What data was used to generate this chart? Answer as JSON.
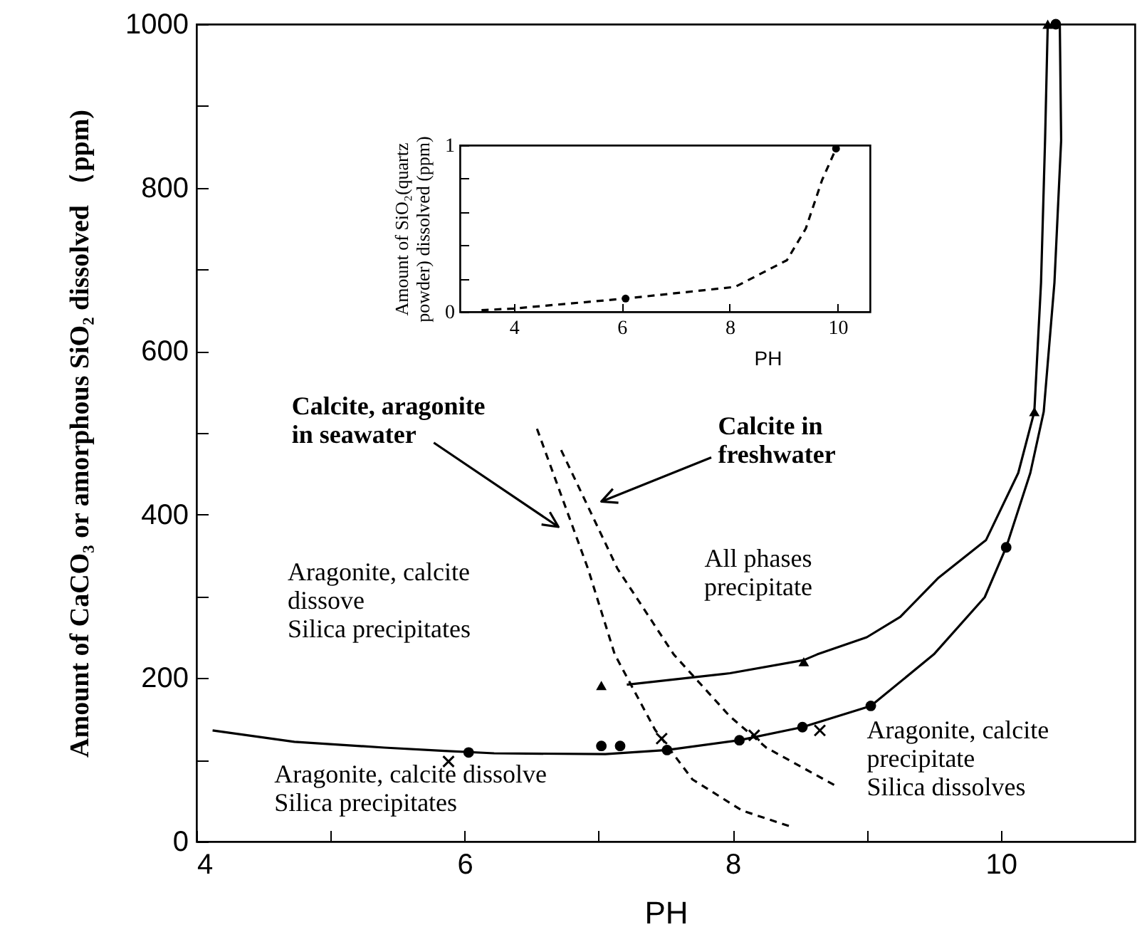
{
  "chart_data": [
    {
      "type": "line",
      "xlabel": "PH",
      "ylabel": "Amount of CaCO₃ or amorphous SiO₂ dissolved （ppm)",
      "xlim": [
        4,
        11
      ],
      "ylim": [
        0,
        1000
      ],
      "xticks": [
        4,
        {
          "value": 5,
          "label": null
        },
        6,
        {
          "value": 7,
          "label": null
        },
        8,
        {
          "value": 9,
          "label": null
        },
        10
      ],
      "yticks": [
        0,
        {
          "value": 100,
          "label": null
        },
        200,
        {
          "value": 300,
          "label": null
        },
        400,
        {
          "value": 500,
          "label": null
        },
        600,
        {
          "value": 700,
          "label": null
        },
        800,
        {
          "value": 900,
          "label": null
        },
        1000
      ],
      "series": [
        {
          "type": "line",
          "color": "#000000",
          "marker": "none",
          "line_style": "solid",
          "x": [
            4.12,
            4.73,
            5.4,
            5.85,
            6.22,
            7.05,
            7.51,
            8.05,
            8.52,
            9.03,
            9.5,
            9.88,
            10.04,
            10.22,
            10.32,
            10.4,
            10.45,
            10.44
          ],
          "values": [
            136,
            122,
            115,
            111,
            108,
            107,
            112,
            124,
            140,
            166,
            229,
            299,
            360,
            451,
            526,
            684,
            858,
            1000
          ]
        },
        {
          "type": "line",
          "color": "#000000",
          "marker": "none",
          "line_style": "solid",
          "x": [
            7.21,
            7.98,
            8.53,
            8.63,
            9.0,
            9.25,
            9.53,
            9.89,
            10.13,
            10.25,
            10.3,
            10.33,
            10.35
          ],
          "values": [
            192,
            206,
            222,
            229,
            250,
            275,
            322,
            369,
            451,
            526,
            684,
            858,
            1000
          ]
        },
        {
          "type": "scatter",
          "color": "#000000",
          "marker": "circle",
          "x": [
            6.03,
            7.02,
            7.16,
            7.51,
            8.05,
            8.52,
            9.03,
            10.04,
            10.41
          ],
          "values": [
            109,
            117,
            117,
            112,
            124,
            140,
            166,
            360,
            1000
          ]
        },
        {
          "type": "scatter",
          "color": "#000000",
          "marker": "triangle",
          "x": [
            7.02,
            8.53,
            10.25,
            10.35
          ],
          "values": [
            191,
            220,
            526,
            1000
          ]
        },
        {
          "type": "scatter",
          "color": "#000000",
          "marker": "cross",
          "x": [
            5.88,
            7.47,
            8.16,
            8.65
          ],
          "values": [
            98,
            126,
            130,
            136
          ]
        },
        {
          "type": "line",
          "color": "#000000",
          "marker": "none",
          "line_style": "dashed",
          "x": [
            6.54,
            6.92,
            7.12,
            7.42,
            7.7,
            8.07,
            8.42
          ],
          "values": [
            505,
            334,
            229,
            137,
            76,
            38,
            19
          ]
        },
        {
          "type": "line",
          "color": "#000000",
          "marker": "none",
          "line_style": "dashed",
          "x": [
            6.72,
            7.14,
            7.56,
            7.98,
            8.25,
            8.76
          ],
          "values": [
            479,
            334,
            229,
            153,
            115,
            69
          ]
        }
      ],
      "annotations": [
        "Calcite, aragonite\nin seawater",
        "Calcite in\nfreshwater",
        "All  phases\nprecipitate",
        "Aragonite, calcite\ndissove\nSilica precipitates",
        "Aragonite, calcite dissolve\nSilica precipitates",
        "Aragonite, calcite\nprecipitate\nSilica dissolves"
      ]
    },
    {
      "type": "line",
      "xlabel": "PH",
      "ylabel": "Amount of SiO₂(quartz\npowder) dissolved (ppm)",
      "xlim": [
        3,
        10.6
      ],
      "ylim": [
        0,
        1
      ],
      "xticks": [
        4,
        6,
        8,
        10
      ],
      "yticks": [
        0,
        {
          "value": 0.2,
          "label": null
        },
        {
          "value": 0.4,
          "label": null
        },
        {
          "value": 0.6,
          "label": null
        },
        {
          "value": 0.8,
          "label": null
        },
        1
      ],
      "series": [
        {
          "type": "line",
          "color": "#000000",
          "marker": "none",
          "line_style": "dashed",
          "x": [
            3.4,
            4.0,
            6.07,
            8.1,
            9.06,
            9.41,
            9.71,
            9.97
          ],
          "values": [
            0.01,
            0.02,
            0.08,
            0.15,
            0.31,
            0.5,
            0.79,
            0.98
          ]
        },
        {
          "type": "scatter",
          "color": "#000000",
          "marker": "circle",
          "x": [
            6.07,
            9.97
          ],
          "values": [
            0.08,
            0.98
          ]
        }
      ]
    }
  ]
}
